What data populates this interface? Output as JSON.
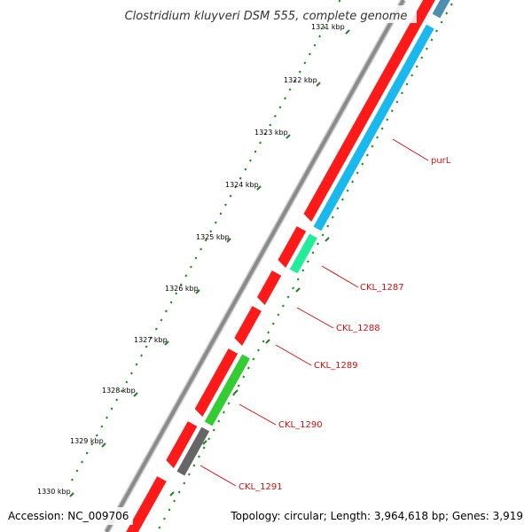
{
  "title": "Clostridium kluyveri DSM 555, complete genome",
  "footer": {
    "accession": "Accession: NC_009706",
    "topology": "Topology: circular; Length: 3,964,618 bp; Genes: 3,919"
  },
  "colors": {
    "background": "#ffffff",
    "backbone": "#8a8a8a",
    "forward_cds": "#ff1a1a",
    "gene_label": "#d01010",
    "tick_major": "#2a7a2a",
    "tick_minor": "#1a8a1a",
    "cyan_gene": "#19b8ee",
    "green_gene": "#33cc33",
    "teal_gene": "#22ee99",
    "gray_gene": "#666666",
    "steel_gene": "#4d8fb0"
  },
  "ticks": [
    {
      "label": "1321 kbp"
    },
    {
      "label": "1322 kbp"
    },
    {
      "label": "1323 kbp"
    },
    {
      "label": "1324 kbp"
    },
    {
      "label": "1325 kbp"
    },
    {
      "label": "1326 kbp"
    },
    {
      "label": "1327 kbp"
    },
    {
      "label": "1328 kbp"
    },
    {
      "label": "1329 kbp"
    },
    {
      "label": "1330 kbp"
    }
  ],
  "genes": [
    {
      "label": "purL"
    },
    {
      "label": "CKL_1287"
    },
    {
      "label": "CKL_1288"
    },
    {
      "label": "CKL_1289"
    },
    {
      "label": "CKL_1290"
    },
    {
      "label": "CKL_1291"
    }
  ]
}
